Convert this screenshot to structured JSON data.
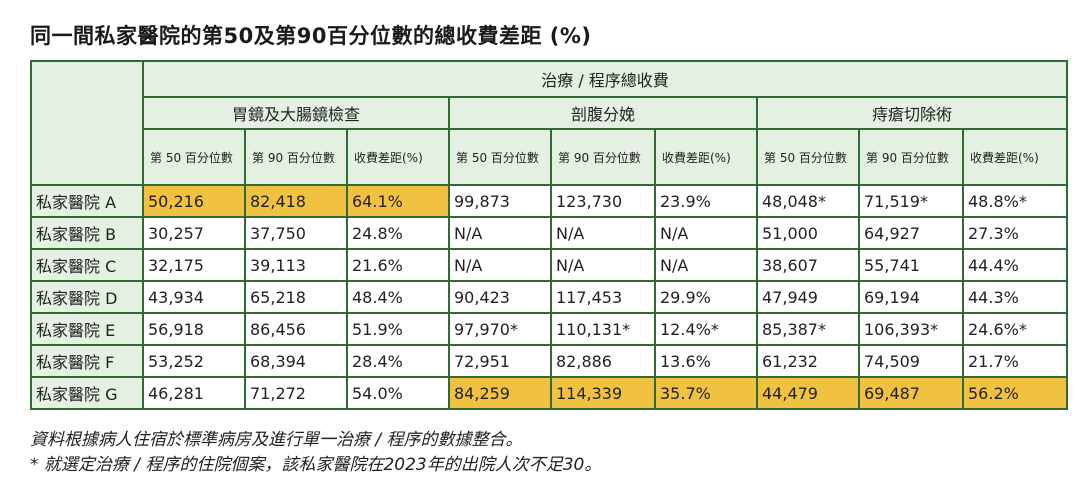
{
  "title": "同一間私家醫院的第50及第90百分位數的總收費差距 (%)",
  "header": {
    "group_label": "治療 / 程序總收費",
    "procedures": [
      "胃鏡及大腸鏡檢查",
      "剖腹分娩",
      "痔瘡切除術"
    ],
    "subcolumns": [
      "第 50 百分位數",
      "第 90 百分位數",
      "收費差距(%)"
    ]
  },
  "rows": [
    {
      "label": "私家醫院 A",
      "values": [
        "50,216",
        "82,418",
        "64.1%",
        "99,873",
        "123,730",
        "23.9%",
        "48,048*",
        "71,519*",
        "48.8%*"
      ]
    },
    {
      "label": "私家醫院 B",
      "values": [
        "30,257",
        "37,750",
        "24.8%",
        "N/A",
        "N/A",
        "N/A",
        "51,000",
        "64,927",
        "27.3%"
      ]
    },
    {
      "label": "私家醫院 C",
      "values": [
        "32,175",
        "39,113",
        "21.6%",
        "N/A",
        "N/A",
        "N/A",
        "38,607",
        "55,741",
        "44.4%"
      ]
    },
    {
      "label": "私家醫院 D",
      "values": [
        "43,934",
        "65,218",
        "48.4%",
        "90,423",
        "117,453",
        "29.9%",
        "47,949",
        "69,194",
        "44.3%"
      ]
    },
    {
      "label": "私家醫院 E",
      "values": [
        "56,918",
        "86,456",
        "51.9%",
        "97,970*",
        "110,131*",
        "12.4%*",
        "85,387*",
        "106,393*",
        "24.6%*"
      ]
    },
    {
      "label": "私家醫院 F",
      "values": [
        "53,252",
        "68,394",
        "28.4%",
        "72,951",
        "82,886",
        "13.6%",
        "61,232",
        "74,509",
        "21.7%"
      ]
    },
    {
      "label": "私家醫院 G",
      "values": [
        "46,281",
        "71,272",
        "54.0%",
        "84,259",
        "114,339",
        "35.7%",
        "44,479",
        "69,487",
        "56.2%"
      ]
    }
  ],
  "highlights": {
    "0": [
      0,
      1,
      2
    ],
    "6": [
      3,
      4,
      5,
      6,
      7,
      8
    ]
  },
  "colors": {
    "border": "#2f6b35",
    "header_bg": "#e4f0e2",
    "highlight": "#f1c242"
  },
  "notes": [
    "資料根據病人住宿於標準病房及進行單一治療 / 程序的數據整合。",
    "* 就選定治療 / 程序的住院個案，該私家醫院在2023年的出院人次不足30。"
  ]
}
